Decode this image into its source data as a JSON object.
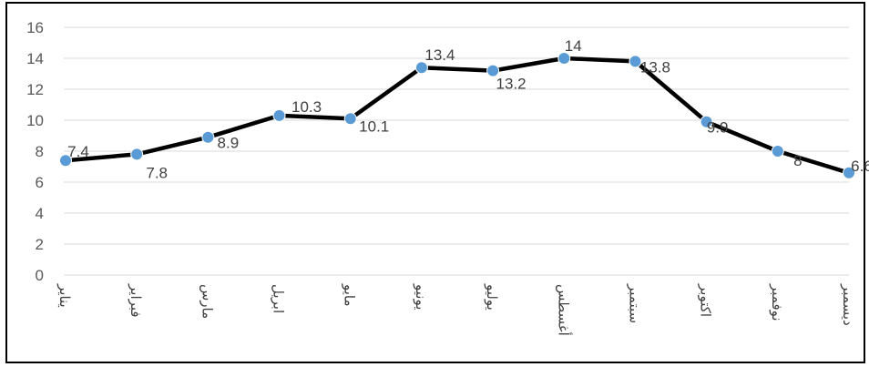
{
  "chart_data": {
    "type": "line",
    "categories": [
      "يناير",
      "فبراير",
      "مارس",
      "ابريل",
      "مايو",
      "يونيو",
      "يوليو",
      "أغسطس",
      "سبتمبر",
      "اكتوبر",
      "نوفمبر",
      "ديسمبر"
    ],
    "series": [
      {
        "values": [
          7.4,
          7.8,
          8.9,
          10.3,
          10.1,
          13.4,
          13.2,
          14,
          13.8,
          9.9,
          8,
          6.6
        ]
      }
    ],
    "data_labels": [
      "7.4",
      "7.8",
      "8.9",
      "10.3",
      "10.1",
      "13.4",
      "13.2",
      "14",
      "13.8",
      "9.9",
      "8",
      "6.6"
    ],
    "y_ticks": [
      "0",
      "2",
      "4",
      "6",
      "8",
      "10",
      "12",
      "14",
      "16"
    ],
    "ylim": [
      0,
      16
    ],
    "title": "",
    "xlabel": "",
    "ylabel": "",
    "grid": true,
    "legend": "none",
    "colors": {
      "line": "#000000",
      "marker": "#5b9bd5",
      "grid": "#d9d9d9"
    }
  }
}
